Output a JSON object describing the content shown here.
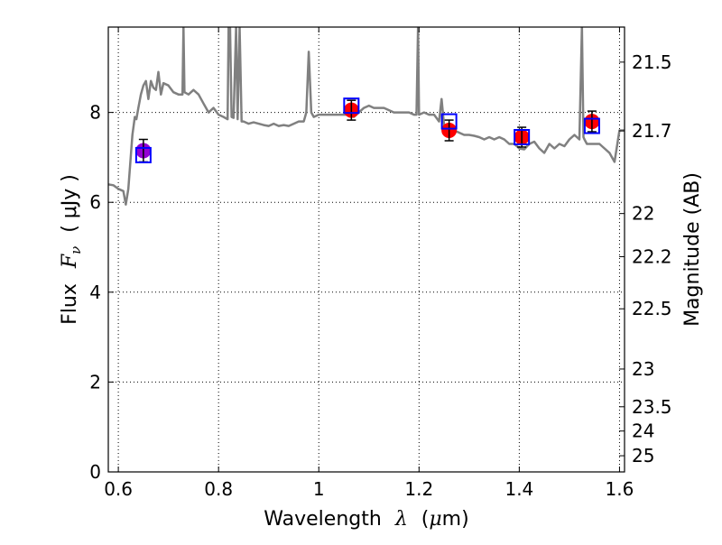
{
  "chart_data": {
    "type": "scatter",
    "title": "",
    "xlabel": {
      "prefix": "Wavelength",
      "symbol": "λ",
      "unit_open": "(",
      "unit_mu": "μ",
      "unit_rest": "m)"
    },
    "ylabel": {
      "prefix": "Flux",
      "symbol": "F",
      "subscript": "ν",
      "unit": "( μJy )"
    },
    "y2label": "Magnitude (AB)",
    "xlim": [
      0.58,
      1.61
    ],
    "ylim": [
      0,
      9.9
    ],
    "grid": true,
    "x_ticks": [
      0.6,
      0.8,
      1.0,
      1.2,
      1.4,
      1.6
    ],
    "x_tick_labels": [
      "0.6",
      "0.8",
      "1",
      "1.2",
      "1.4",
      "1.6"
    ],
    "y_ticks": [
      0,
      2,
      4,
      6,
      8
    ],
    "y_tick_labels": [
      "0",
      "2",
      "4",
      "6",
      "8"
    ],
    "y2_ticks": [
      {
        "label": "21.5",
        "flux": 9.12
      },
      {
        "label": "21.7",
        "flux": 7.59
      },
      {
        "label": "22",
        "flux": 5.75
      },
      {
        "label": "22.2",
        "flux": 4.79
      },
      {
        "label": "22.5",
        "flux": 3.63
      },
      {
        "label": "23",
        "flux": 2.29
      },
      {
        "label": "23.5",
        "flux": 1.45
      },
      {
        "label": "24",
        "flux": 0.91
      },
      {
        "label": "25",
        "flux": 0.36
      }
    ],
    "series": [
      {
        "type": "line",
        "color": "#808080",
        "x": [
          0.58,
          0.59,
          0.6,
          0.61,
          0.615,
          0.62,
          0.628,
          0.633,
          0.636,
          0.64,
          0.645,
          0.65,
          0.655,
          0.66,
          0.665,
          0.67,
          0.675,
          0.68,
          0.685,
          0.69,
          0.7,
          0.71,
          0.72,
          0.728,
          0.73,
          0.732,
          0.74,
          0.75,
          0.76,
          0.77,
          0.78,
          0.79,
          0.8,
          0.81,
          0.818,
          0.82,
          0.823,
          0.826,
          0.83,
          0.835,
          0.838,
          0.842,
          0.846,
          0.85,
          0.86,
          0.87,
          0.88,
          0.89,
          0.9,
          0.91,
          0.92,
          0.93,
          0.94,
          0.95,
          0.96,
          0.97,
          0.975,
          0.98,
          0.985,
          0.99,
          1.0,
          1.01,
          1.02,
          1.03,
          1.04,
          1.05,
          1.06,
          1.07,
          1.08,
          1.09,
          1.1,
          1.11,
          1.12,
          1.13,
          1.14,
          1.15,
          1.16,
          1.17,
          1.18,
          1.19,
          1.195,
          1.198,
          1.2,
          1.21,
          1.22,
          1.23,
          1.24,
          1.245,
          1.25,
          1.26,
          1.27,
          1.28,
          1.29,
          1.3,
          1.31,
          1.32,
          1.33,
          1.34,
          1.35,
          1.36,
          1.37,
          1.38,
          1.39,
          1.4,
          1.41,
          1.42,
          1.43,
          1.44,
          1.45,
          1.46,
          1.47,
          1.48,
          1.49,
          1.5,
          1.51,
          1.52,
          1.525,
          1.528,
          1.53,
          1.535,
          1.54,
          1.55,
          1.56,
          1.57,
          1.58,
          1.59,
          1.6,
          1.61
        ],
        "y": [
          6.4,
          6.38,
          6.3,
          6.25,
          5.95,
          6.3,
          7.5,
          7.9,
          7.85,
          8.1,
          8.4,
          8.6,
          8.7,
          8.3,
          8.7,
          8.55,
          8.5,
          8.9,
          8.4,
          8.65,
          8.6,
          8.45,
          8.4,
          8.4,
          9.9,
          8.45,
          8.4,
          8.5,
          8.4,
          8.2,
          8.0,
          8.1,
          7.95,
          7.9,
          7.85,
          9.9,
          9.9,
          7.9,
          7.88,
          9.9,
          7.85,
          9.9,
          7.8,
          7.8,
          7.75,
          7.78,
          7.75,
          7.72,
          7.7,
          7.75,
          7.7,
          7.72,
          7.7,
          7.75,
          7.8,
          7.8,
          8.0,
          9.35,
          8.0,
          7.9,
          7.95,
          7.95,
          7.95,
          7.95,
          7.95,
          7.95,
          7.95,
          7.9,
          8.0,
          8.1,
          8.15,
          8.1,
          8.1,
          8.1,
          8.05,
          8.0,
          8.0,
          8.0,
          8.0,
          7.95,
          7.95,
          9.9,
          7.95,
          8.0,
          7.95,
          7.95,
          7.8,
          8.3,
          7.7,
          7.6,
          7.6,
          7.55,
          7.5,
          7.5,
          7.48,
          7.45,
          7.4,
          7.45,
          7.4,
          7.45,
          7.4,
          7.3,
          7.3,
          7.2,
          7.18,
          7.3,
          7.35,
          7.2,
          7.1,
          7.3,
          7.2,
          7.3,
          7.25,
          7.4,
          7.5,
          7.4,
          9.9,
          7.45,
          7.4,
          7.3,
          7.3,
          7.3,
          7.3,
          7.2,
          7.1,
          6.9,
          7.6,
          7.6
        ]
      },
      {
        "type": "model_photometry",
        "marker": "open-square",
        "color": "#0000ff",
        "x": [
          0.65,
          1.065,
          1.26,
          1.405,
          1.545
        ],
        "y": [
          7.05,
          8.15,
          7.8,
          7.45,
          7.7
        ]
      },
      {
        "type": "observed_photometry",
        "marker": "circle",
        "x": [
          0.65,
          1.065,
          1.26,
          1.405,
          1.545
        ],
        "y": [
          7.15,
          8.05,
          7.6,
          7.45,
          7.8
        ],
        "yerr": [
          0.25,
          0.22,
          0.23,
          0.22,
          0.23
        ],
        "colors": [
          "#9400d3",
          "#ff0000",
          "#ff0000",
          "#ff0000",
          "#ff0000"
        ]
      }
    ]
  }
}
